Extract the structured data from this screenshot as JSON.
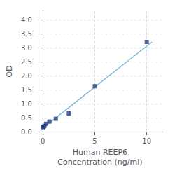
{
  "chart_data": {
    "type": "scatter",
    "xlabel": "Human REEP6\nConcentration (ng/ml)",
    "ylabel": "OD",
    "xlim": [
      -0.5,
      11.5
    ],
    "ylim": [
      0.0,
      4.3
    ],
    "xticks": [
      0,
      5,
      10
    ],
    "yticks": [
      {
        "value": 0,
        "label": "0.0"
      },
      0.5,
      {
        "value": 1.0,
        "label": "1.0"
      },
      1.5,
      {
        "value": 2.0,
        "label": "2.0"
      },
      2.5,
      {
        "value": 3.0,
        "label": "3.0"
      },
      3.5,
      {
        "value": 4.0,
        "label": "4.0"
      }
    ],
    "grid": true,
    "series": [
      {
        "type": "line",
        "color": "#7FB8D8",
        "x": [
          0.0,
          10.5
        ],
        "values": [
          0.13,
          3.2
        ]
      },
      {
        "type": "scatter",
        "color": "#1F3D7A",
        "marker": "square",
        "x": [
          0.0,
          0.078,
          0.156,
          0.313,
          0.625,
          1.25,
          2.5,
          5.0,
          10.0
        ],
        "values": [
          0.158,
          0.175,
          0.205,
          0.28,
          0.36,
          0.46,
          0.65,
          1.62,
          3.2
        ]
      }
    ]
  }
}
